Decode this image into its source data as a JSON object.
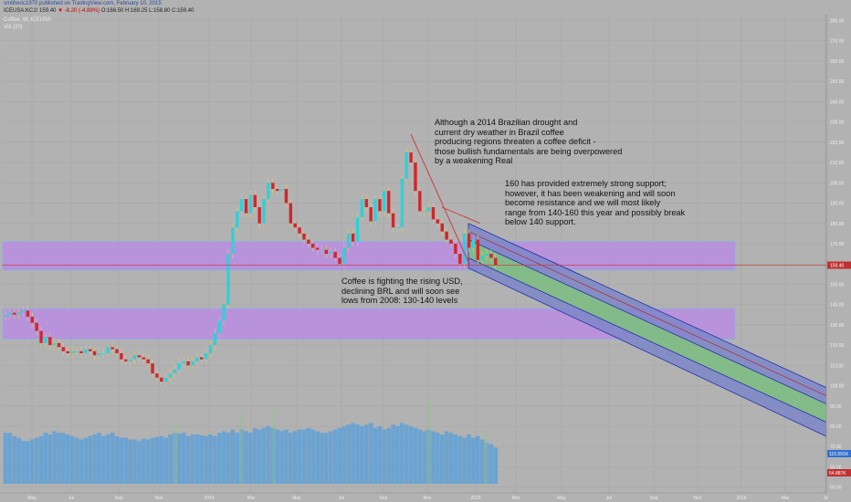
{
  "header": {
    "byline": "smitheric1970 published on TradingView.com, February 10, 2015",
    "symbol": "ICEUSA:KC1!",
    "last": "159.40",
    "change": "▼ -8.20 (-4.89%)",
    "ohlc": "O:166.50 H:169.25 L:158.80 C:159.40",
    "title": "Coffee, W, ICEUSA",
    "indicator": "Vol (20)"
  },
  "colors": {
    "background": "#b2b2b2",
    "up_candle": "#2fd0d8",
    "down_candle": "#d3252a",
    "support_band": "#b98ce0",
    "channel_outer": "#7d86c8",
    "channel_inner": "#83c082",
    "channel_line": "#2230a8",
    "volume": "#5a9fd8",
    "price_line": "#cc3333"
  },
  "annotations": [
    "Although a 2014 Brazilian drought and\ncurrent dry weather in Brazil coffee\nproducing regions threaten a coffee deficit -\nthose bullish fundamentals are being overpowered\nby a weakening Real",
    "160 has provided extremely strong support;\nhowever, it has been weakening and will soon\nbecome resistance and we will most likely\nrange from 140-160 this year and possibly break\nbelow 140 support.",
    "Coffee is fighting the rising USD,\ndeclining BRL and will soon see\nlows from 2008: 130-140 levels"
  ],
  "chart_data": {
    "type": "candlestick",
    "title": "Coffee, W, ICEUSA",
    "x_tick_labels": [
      "May",
      "Jul",
      "Sep",
      "Nov",
      "2014",
      "Mar",
      "May",
      "Jul",
      "Sep",
      "Nov",
      "2015",
      "Mar",
      "May",
      "Jul",
      "Sep",
      "Nov",
      "2016",
      "Mar",
      "Ju"
    ],
    "y_tick_labels": [
      "280.00",
      "270.00",
      "260.00",
      "250.00",
      "240.00",
      "230.00",
      "220.00",
      "210.00",
      "200.00",
      "190.00",
      "180.00",
      "170.00",
      "160.00",
      "150.00",
      "140.00",
      "130.00",
      "120.00",
      "110.00",
      "100.00",
      "90.00",
      "80.00",
      "70.00",
      "60.00",
      "50.00"
    ],
    "ylim": [
      50,
      285
    ],
    "last_price": 159.4,
    "volume_labels": [
      "115.591K",
      "54.887K"
    ],
    "support_zones": [
      [
        157,
        171
      ],
      [
        123,
        138
      ]
    ],
    "channel": {
      "outer_top": [
        180,
        99
      ],
      "outer_bottom": [
        158,
        75
      ],
      "inner_top": [
        172,
        91
      ],
      "inner_bottom": [
        163,
        82
      ],
      "extends_to_date": "2016-03"
    },
    "closes": [
      135,
      136,
      135,
      136,
      137,
      134,
      131,
      127,
      121,
      124,
      120,
      121,
      119,
      117,
      116,
      117,
      117,
      116,
      118,
      117,
      115,
      116,
      116,
      119,
      118,
      116,
      113,
      112,
      113,
      115,
      114,
      113,
      111,
      106,
      104,
      102,
      104,
      106,
      108,
      111,
      112,
      110,
      112,
      114,
      113,
      116,
      120,
      126,
      132,
      140,
      165,
      178,
      186,
      192,
      185,
      194,
      188,
      180,
      192,
      200,
      197,
      196,
      197,
      190,
      180,
      178,
      175,
      172,
      170,
      168,
      167,
      167,
      165,
      166,
      163,
      160,
      168,
      175,
      171,
      183,
      192,
      188,
      181,
      192,
      186,
      196,
      185,
      178,
      178,
      202,
      215,
      210,
      196,
      186,
      186,
      188,
      182,
      180,
      176,
      172,
      170,
      165,
      160,
      175,
      168,
      172,
      162,
      164,
      165,
      163,
      159.4
    ],
    "volume": [
      62,
      62,
      58,
      56,
      52,
      52,
      54,
      56,
      58,
      62,
      60,
      64,
      62,
      62,
      60,
      58,
      56,
      54,
      56,
      58,
      60,
      62,
      58,
      60,
      62,
      58,
      56,
      56,
      54,
      54,
      52,
      55,
      54,
      56,
      57,
      58,
      56,
      60,
      62,
      61,
      62,
      58,
      60,
      60,
      59,
      58,
      60,
      58,
      62,
      64,
      62,
      66,
      62,
      66,
      64,
      62,
      68,
      66,
      68,
      70,
      68,
      66,
      64,
      66,
      62,
      64,
      66,
      66,
      68,
      66,
      64,
      62,
      62,
      64,
      66,
      68,
      70,
      72,
      74,
      72,
      70,
      72,
      74,
      68,
      70,
      66,
      68,
      72,
      70,
      74,
      72,
      70,
      68,
      66,
      64,
      66,
      64,
      62,
      60,
      64,
      62,
      60,
      58,
      56,
      60,
      56,
      58,
      54,
      50,
      48,
      44
    ]
  }
}
